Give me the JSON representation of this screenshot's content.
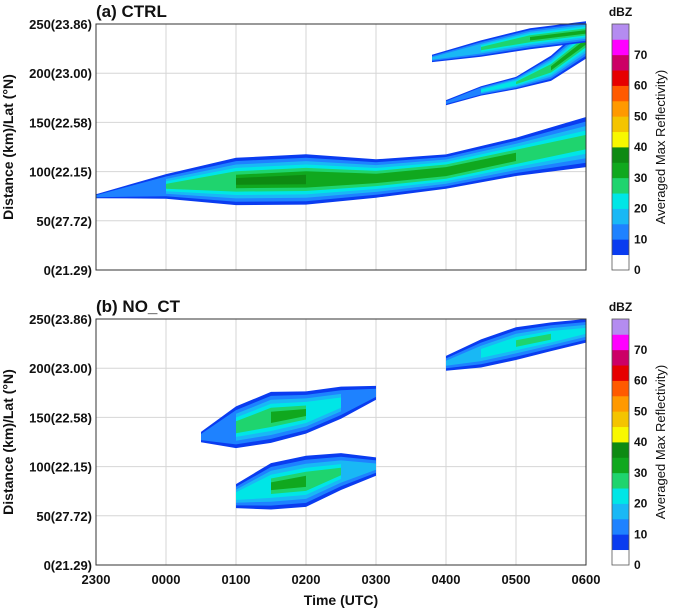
{
  "figure": {
    "x_axis_label": "Time (UTC)",
    "x_tick_labels": [
      "2300",
      "0000",
      "0100",
      "0200",
      "0300",
      "0400",
      "0500",
      "0600"
    ],
    "y_axis_label": "Distance (km)/Lat (°N)",
    "y_tick_labels": [
      "0(21.29)",
      "50(27.72)",
      "100(22.15)",
      "150(22.58)",
      "200(23.00)",
      "250(23.86)"
    ],
    "colorbar_unit": "dBZ",
    "colorbar_label": "Averaged Max Reflectivity)",
    "colorbar_tick_labels": [
      "0",
      "10",
      "20",
      "30",
      "40",
      "50",
      "60",
      "70"
    ],
    "grid": true
  },
  "chart_data": [
    {
      "type": "heatmap",
      "title": "(a) CTRL",
      "x_unit": "hours after 2300 UTC",
      "xlim": [
        0,
        7
      ],
      "ylim": [
        0,
        250
      ],
      "levels_dbz": [
        0,
        5,
        10,
        15,
        20,
        25,
        30,
        35,
        40,
        45,
        50,
        55,
        60,
        65,
        70,
        75
      ],
      "level_colors": [
        "#ffffff",
        "#0a3cf0",
        "#1e82ff",
        "#19b8f5",
        "#00e6e6",
        "#1fd46e",
        "#10a81e",
        "#0e8a12",
        "#f8f800",
        "#f4c400",
        "#ff9900",
        "#ff5a00",
        "#e60000",
        "#cc0066",
        "#ff00ff",
        "#b48cf0"
      ],
      "cells": [
        {
          "x": [
            0.0,
            1.0,
            2.0,
            3.0,
            4.0,
            5.0,
            6.0,
            7.0
          ],
          "y": [
            75,
            85,
            90,
            92,
            93,
            100,
            115,
            130
          ],
          "thickness": [
            6,
            30,
            55,
            58,
            45,
            40,
            45,
            60
          ],
          "peak_dbz": [
            10,
            25,
            35,
            37,
            33,
            34,
            32,
            28
          ]
        },
        {
          "x": [
            5.0,
            5.5,
            6.0,
            6.5,
            7.0
          ],
          "y": [
            170,
            182,
            190,
            205,
            232
          ],
          "thickness": [
            8,
            12,
            15,
            30,
            40
          ],
          "peak_dbz": [
            10,
            20,
            25,
            30,
            30
          ]
        },
        {
          "x": [
            4.8,
            5.5,
            6.2,
            7.0
          ],
          "y": [
            215,
            225,
            235,
            242
          ],
          "thickness": [
            10,
            20,
            25,
            25
          ],
          "peak_dbz": [
            15,
            25,
            30,
            30
          ]
        }
      ]
    },
    {
      "type": "heatmap",
      "title": "(b) NO_CT",
      "x_unit": "hours after 2300 UTC",
      "xlim": [
        0,
        7
      ],
      "ylim": [
        0,
        250
      ],
      "levels_dbz": [
        0,
        5,
        10,
        15,
        20,
        25,
        30,
        35,
        40,
        45,
        50,
        55,
        60,
        65,
        70,
        75
      ],
      "level_colors": [
        "#ffffff",
        "#0a3cf0",
        "#1e82ff",
        "#19b8f5",
        "#00e6e6",
        "#1fd46e",
        "#10a81e",
        "#0e8a12",
        "#f8f800",
        "#f4c400",
        "#ff9900",
        "#ff5a00",
        "#e60000",
        "#cc0066",
        "#ff00ff",
        "#b48cf0"
      ],
      "cells": [
        {
          "x": [
            1.5,
            2.0,
            2.5,
            3.0,
            3.5,
            4.0
          ],
          "y": [
            130,
            140,
            150,
            155,
            165,
            175
          ],
          "thickness": [
            15,
            50,
            60,
            50,
            40,
            20
          ],
          "peak_dbz": [
            12,
            28,
            32,
            30,
            22,
            12
          ]
        },
        {
          "x": [
            2.0,
            2.5,
            3.0,
            3.5,
            4.0
          ],
          "y": [
            70,
            80,
            85,
            95,
            100
          ],
          "thickness": [
            30,
            55,
            60,
            45,
            25
          ],
          "peak_dbz": [
            22,
            30,
            32,
            25,
            15
          ]
        },
        {
          "x": [
            5.0,
            5.5,
            6.0,
            6.5,
            7.0
          ],
          "y": [
            205,
            215,
            225,
            232,
            238
          ],
          "thickness": [
            20,
            35,
            40,
            35,
            30
          ],
          "peak_dbz": [
            15,
            22,
            25,
            25,
            20
          ]
        }
      ]
    }
  ]
}
